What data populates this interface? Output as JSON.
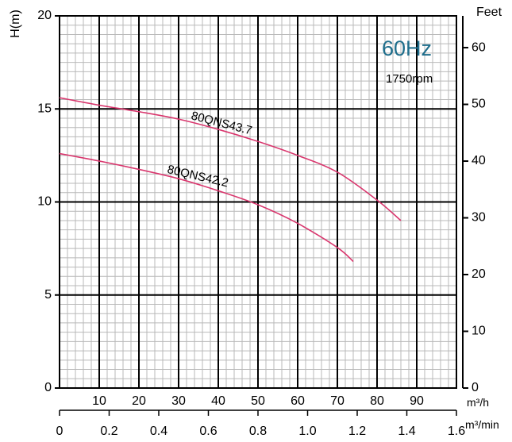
{
  "chart_data": {
    "type": "line",
    "frequency": "60Hz",
    "speed": "1750rpm",
    "ylabel": "H(m)",
    "ylabel_right": "Feet",
    "xlabel": "m³/h",
    "xlabel_secondary": "m³/min",
    "xlim": [
      0,
      100
    ],
    "ylim": [
      0,
      20
    ],
    "ylim_right": [
      0,
      65.6
    ],
    "yticks": [
      0,
      5,
      10,
      15,
      20
    ],
    "yticks_right": [
      0,
      10,
      20,
      30,
      40,
      50,
      60
    ],
    "xticks": [
      10,
      20,
      30,
      40,
      50,
      60,
      70,
      80,
      90
    ],
    "xticks_secondary": [
      0,
      0.2,
      0.4,
      0.6,
      0.8,
      1.0,
      1.2,
      1.4,
      1.6
    ],
    "xticks_secondary_labels": [
      "0",
      "0.2",
      "0.4",
      "0.6",
      "0.8",
      "1.0",
      "1.2",
      "1.4",
      "1.6"
    ],
    "grid": true,
    "colors": {
      "curve": "#d9376e",
      "frequency": "#1f6e8c"
    },
    "series": [
      {
        "name": "80QNS43.7",
        "x": [
          0,
          10,
          20,
          30,
          40,
          50,
          60,
          70,
          80,
          86
        ],
        "y": [
          15.6,
          15.2,
          14.85,
          14.45,
          13.9,
          13.25,
          12.5,
          11.6,
          10.1,
          9.0
        ]
      },
      {
        "name": "80QNS42.2",
        "x": [
          0,
          10,
          20,
          30,
          40,
          50,
          60,
          70,
          74
        ],
        "y": [
          12.6,
          12.2,
          11.75,
          11.25,
          10.6,
          9.85,
          8.85,
          7.55,
          6.8
        ]
      }
    ]
  }
}
